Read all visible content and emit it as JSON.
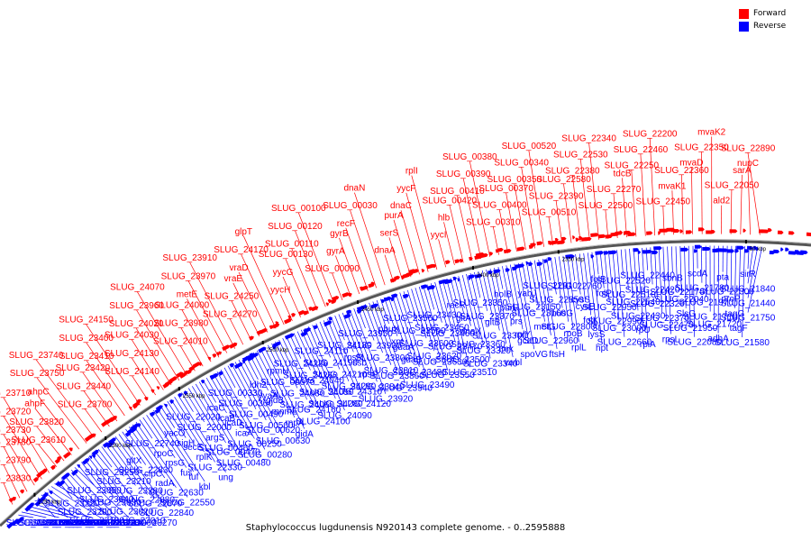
{
  "title": "Staphylococcus lugdunensis N920143 complete genome. - 0..2595888",
  "legend": [
    {
      "label": "Forward",
      "color": "#ff0000"
    },
    {
      "label": "Reverse",
      "color": "#0000ff"
    }
  ],
  "scale_labels": [
    "2350 kbp",
    "2400 kbp",
    "2450 kbp",
    "2500 kbp",
    "2550 kbp",
    "50 kbp",
    "2300 kbp",
    "2250 kbp"
  ],
  "forward_labels": [
    "SLUG_23830",
    "SLUG_23790",
    "SLUG_23780",
    "SLUG_23730",
    "SLUG_23720",
    "SLUG_23710",
    "SLUG_23610",
    "SLUG_23820",
    "ahpF",
    "ahpC",
    "SLUG_23750",
    "SLUG_23740",
    "SLUG_23700",
    "SLUG_23440",
    "SLUG_23420",
    "SLUG_23410",
    "SLUG_23400",
    "SLUG_24150",
    "SLUG_24140",
    "SLUG_24130",
    "SLUG_24030",
    "SLUG_24020",
    "SLUG_23960",
    "SLUG_24070",
    "SLUG_24010",
    "SLUG_23980",
    "SLUG_24000",
    "metE",
    "SLUG_23970",
    "SLUG_23910",
    "SLUG_24270",
    "SLUG_24250",
    "vraE",
    "vraD",
    "SLUG_24170",
    "glpT",
    "yycH",
    "yycG",
    "SLUG_00130",
    "SLUG_00110",
    "SLUG_00120",
    "SLUG_00100",
    "SLUG_00090",
    "gyrA",
    "gyrB",
    "recF",
    "SLUG_00030",
    "dnaN",
    "dnaA",
    "serS",
    "purA",
    "dnaC",
    "yycF",
    "rplI",
    "yycI",
    "hlb",
    "SLUG_00420",
    "SLUG_00410",
    "SLUG_00390",
    "SLUG_00380",
    "SLUG_00310",
    "SLUG_00400",
    "SLUG_00370",
    "SLUG_00350",
    "SLUG_00340",
    "SLUG_00520",
    "SLUG_00510",
    "SLUG_22390",
    "SLUG_22580",
    "SLUG_22380",
    "SLUG_22530",
    "SLUG_22340",
    "SLUG_22500",
    "SLUG_22270",
    "tdcB",
    "SLUG_22250",
    "SLUG_22460",
    "SLUG_22200",
    "SLUG_22450",
    "mvaK1",
    "SLUG_22360",
    "mvaD",
    "SLUG_22350",
    "mvaK2",
    "ald2",
    "SLUG_22050",
    "sarA",
    "nupC",
    "SLUG_22890"
  ],
  "reverse_labels": [
    "SLUG_24340",
    "SLUG_24330",
    "SLUG_24300",
    "SLUG_24320",
    "SLUG_23580",
    "SLUG_23570",
    "SLUG_23540",
    "SLUG_23530",
    "SLUG_23520",
    "SLUG_23650",
    "SLUG_23640",
    "SLUG_23230",
    "SLUG_23220",
    "SLUG_23200",
    "SLUG_23190",
    "SLUG_23170",
    "SLUG_23130",
    "SLUG_23060",
    "SLUG_23050",
    "SLUG_23040",
    "SLUG_23030",
    "SLUG_23020",
    "SLUG_23010",
    "SLUG_23270",
    "SLUG_23250",
    "SLUG_23210",
    "SLUG_23280",
    "SLUG_22880",
    "SLUG_22870",
    "SLUG_22840",
    "gltX",
    "SLUG_22830",
    "clpC",
    "radA",
    "SLUG_22630",
    "SLUG_22550",
    "SLUG_22740",
    "rpoC",
    "rpsG",
    "fus",
    "tuf",
    "kbl",
    "yacO",
    "sigH",
    "secE",
    "rplK",
    "SLUG_22330",
    "ung",
    "SLUG_22020",
    "SLUG_22000",
    "argS",
    "SLUG_00460",
    "SLUG_00470",
    "SLUG_00480",
    "icaC",
    "icaB",
    "icaD",
    "icaA",
    "SLUG_00250",
    "SLUG_00280",
    "SLUG_00330",
    "SLUG_00360",
    "SLUG_00490",
    "SLUG_00500",
    "SLUG_00620",
    "SLUG_00630",
    "ldh2",
    "yyaA",
    "gidB",
    "mnmE",
    "rnpA",
    "gidA",
    "rpmH",
    "SLUG_00070",
    "SLUG_24080",
    "SLUG_24060",
    "SLUG_24160",
    "SLUG_24100",
    "SLUG_24220",
    "SLUG_24260",
    "SLUG_24040",
    "SLUG_24050",
    "SLUG_24280",
    "SLUG_24090",
    "SLUG_24110",
    "SLUG_24190",
    "SLUG_24210",
    "SLUG_24290",
    "SLUG_24310",
    "SLUG_24120",
    "SLUG_24180",
    "rpsR",
    "ssb",
    "rpsF",
    "SLUG_23840",
    "SLUG_23920",
    "SLUG_23950",
    "SLUG_23930",
    "SLUG_23800",
    "SLUG_23810",
    "SLUG_23860",
    "SLUG_23940",
    "pbuX",
    "xpt",
    "guaA",
    "guaB",
    "SLUG_23480",
    "SLUG_23490",
    "SLUG_23560",
    "SLUG_23590",
    "SLUG_23600",
    "SLUG_23620",
    "SLUG_23630",
    "SLUG_23550",
    "SLUG_23430",
    "SLUG_23450",
    "SLUG_23460",
    "SLUG_23470",
    "SLUG_23500",
    "SLUG_23510",
    "recR",
    "gltA",
    "dnaX",
    "SLUG_23360",
    "SLUG_23320",
    "SLUG_23340",
    "SLUG_23350",
    "SLUG_23370",
    "gltB",
    "SLUG_23300",
    "tmk",
    "vwbl",
    "holB",
    "purR",
    "prs",
    "rplY",
    "gcaD",
    "spoVG",
    "yabJ",
    "SLUG_23150",
    "SLUG_23160",
    "metG",
    "SLUG_22960",
    "ftsH",
    "SLUG_22910",
    "SLUG_22850",
    "nusG",
    "SLUG_22800",
    "rpoB",
    "rplL",
    "SLUG_22760",
    "cysS",
    "cysE",
    "folK",
    "lysS",
    "hpt",
    "folB",
    "folP",
    "SLUG_22950",
    "SLUG_22990",
    "SLUG_23000",
    "SLUG_22660",
    "SLUG_22520",
    "SLUG_22510",
    "SLUG_22540",
    "SLUG_22430",
    "rpU",
    "rplA",
    "SLUG_22440",
    "SLUG_22420",
    "SLUG_22320",
    "SLUG_22370",
    "SLUG_22470",
    "rpsL",
    "sbnB",
    "SLUG_22170",
    "SLUG_22040",
    "SlsG",
    "SLUG_21950",
    "SLUG_22080",
    "scdA",
    "SLUG_21780",
    "SLUG_21970",
    "SLUG_21710",
    "SLUG_21720",
    "adhA",
    "pta",
    "SLUG_22300",
    "proP",
    "tagG",
    "tagF",
    "SLUG_21580",
    "sirR",
    "SLUG_21840",
    "SLUG_21440",
    "SLUG_21750"
  ]
}
